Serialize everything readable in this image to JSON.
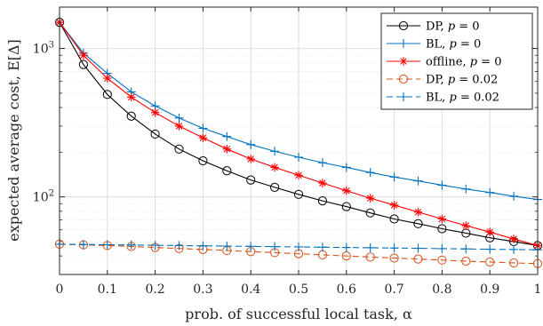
{
  "chart_data": {
    "type": "line",
    "xlabel": "prob. of successful local task, α",
    "ylabel": "expected average cost, E[Δ]",
    "yscale": "log",
    "xlim": [
      0,
      1
    ],
    "ylim": [
      30,
      1900
    ],
    "grid": true,
    "legend_position": "top-right",
    "x": [
      0,
      0.05,
      0.1,
      0.15,
      0.2,
      0.25,
      0.3,
      0.35,
      0.4,
      0.45,
      0.5,
      0.55,
      0.6,
      0.65,
      0.7,
      0.75,
      0.8,
      0.85,
      0.9,
      0.95,
      1
    ],
    "x_tick_labels": [
      "0",
      "0.1",
      "0.2",
      "0.3",
      "0.4",
      "0.5",
      "0.6",
      "0.7",
      "0.8",
      "0.9",
      "1"
    ],
    "x_tick_values": [
      0,
      0.1,
      0.2,
      0.3,
      0.4,
      0.5,
      0.6,
      0.7,
      0.8,
      0.9,
      1
    ],
    "y_tick_values": [
      100,
      1000
    ],
    "y_tick_labels": [
      {
        "base": "10",
        "exp": "2"
      },
      {
        "base": "10",
        "exp": "3"
      }
    ],
    "series": [
      {
        "name": "DP, p = 0",
        "legend": {
          "label": "DP, ",
          "var": "p",
          "rest": " = 0"
        },
        "color": "#000000",
        "dash": "solid",
        "marker": "circle",
        "values": [
          1500,
          780,
          490,
          350,
          265,
          210,
          175,
          150,
          130,
          116,
          104,
          94,
          86,
          78,
          71,
          66,
          61,
          57,
          53,
          50,
          47
        ]
      },
      {
        "name": "BL, p = 0",
        "legend": {
          "label": "BL, ",
          "var": "p",
          "rest": " = 0"
        },
        "color": "#0072BD",
        "dash": "solid",
        "marker": "plus",
        "values": [
          1500,
          930,
          680,
          510,
          410,
          340,
          290,
          255,
          225,
          203,
          185,
          170,
          158,
          146,
          136,
          128,
          120,
          113,
          107,
          101,
          96
        ]
      },
      {
        "name": "offline, p = 0",
        "legend": {
          "label": "offline, ",
          "var": "p",
          "rest": " = 0"
        },
        "color": "#FF0000",
        "dash": "solid",
        "marker": "star",
        "values": [
          1500,
          900,
          630,
          470,
          370,
          300,
          250,
          210,
          180,
          158,
          140,
          124,
          110,
          98,
          88,
          79,
          71,
          64,
          58,
          52,
          47
        ]
      },
      {
        "name": "DP, p = 0.02",
        "legend": {
          "label": "DP, ",
          "var": "p",
          "rest": " = 0.02"
        },
        "color": "#D95319",
        "dash": "dashed",
        "marker": "circle",
        "values": [
          48,
          47.5,
          47,
          46.3,
          45.6,
          44.9,
          44.2,
          43.5,
          42.8,
          42.1,
          41.4,
          40.7,
          40,
          39.3,
          38.7,
          38.1,
          37.5,
          36.9,
          36.4,
          35.9,
          35.5
        ]
      },
      {
        "name": "BL, p = 0.02",
        "legend": {
          "label": "BL, ",
          "var": "p",
          "rest": " = 0.02"
        },
        "color": "#0072BD",
        "dash": "dashed",
        "marker": "plus",
        "values": [
          48,
          47.8,
          47.6,
          47.4,
          47.2,
          47,
          46.8,
          46.6,
          46.4,
          46.2,
          46,
          45.8,
          45.6,
          45.4,
          45.2,
          45,
          44.8,
          44.6,
          44.4,
          44.2,
          44
        ]
      }
    ]
  }
}
